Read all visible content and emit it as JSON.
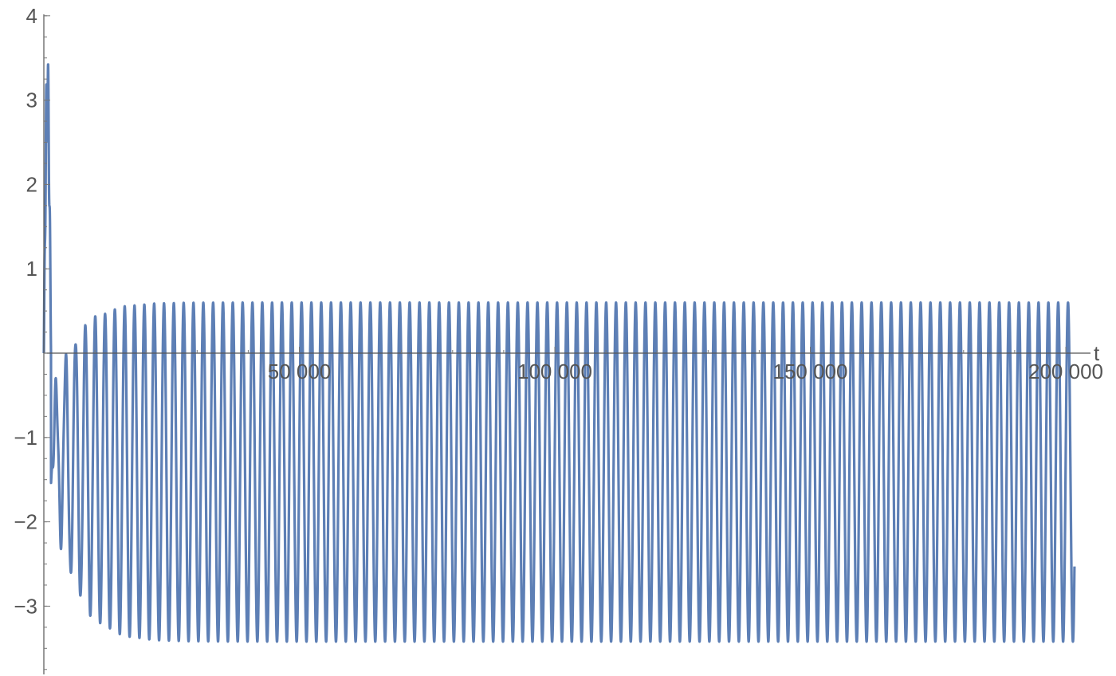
{
  "chart_data": {
    "type": "line",
    "title": "",
    "xlabel": "t",
    "ylabel": "",
    "xlim": [
      0,
      205000
    ],
    "ylim": [
      -3.75,
      4
    ],
    "grid": false,
    "x_ticks": [
      50000,
      100000,
      150000,
      200000
    ],
    "x_tick_labels": [
      "50 000",
      "100 000",
      "150 000",
      "200 000"
    ],
    "y_ticks": [
      -3,
      -2,
      -1,
      1,
      2,
      3,
      4
    ],
    "y_tick_labels": [
      "−3",
      "−2",
      "−1",
      "1",
      "2",
      "3",
      "4"
    ],
    "series": [
      {
        "color": "#5d7fb5",
        "description_values": {
          "initial_peak": 3.6,
          "steady_max": 0.6,
          "steady_min": -3.42,
          "cycles_per_50000": 26
        }
      }
    ]
  }
}
